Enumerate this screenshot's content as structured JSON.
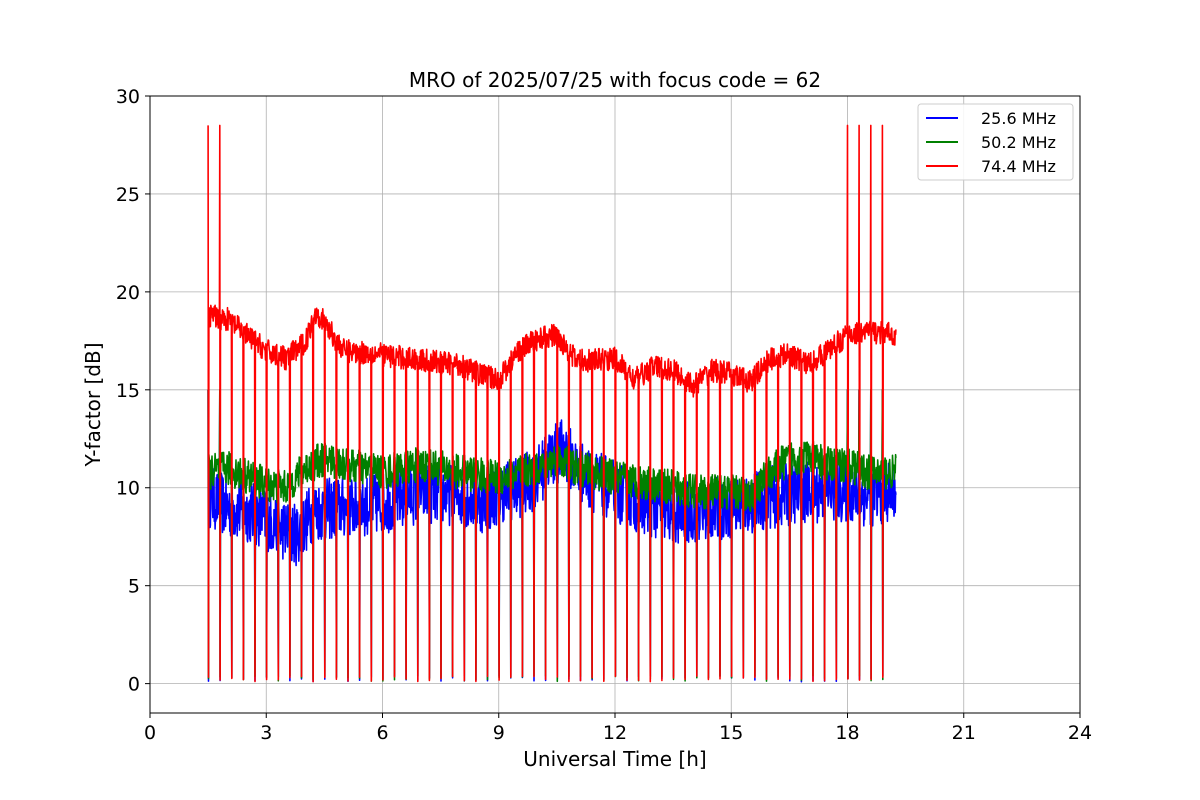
{
  "chart_data": {
    "type": "line",
    "title": "MRO of 2025/07/25 with focus code = 62",
    "xlabel": "Universal Time [h]",
    "ylabel": "Y-factor [dB]",
    "xlim": [
      0,
      24
    ],
    "ylim": [
      -1.5,
      30
    ],
    "xticks": [
      0,
      3,
      6,
      9,
      12,
      15,
      18,
      21,
      24
    ],
    "yticks": [
      0,
      5,
      10,
      15,
      20,
      25,
      30
    ],
    "grid": true,
    "legend_position": "top-right",
    "calibration_spikes": {
      "start_h": 1.5,
      "end_h": 19.05,
      "interval_h": 0.3,
      "low_db": 0.1,
      "peak_db": {
        "25.6 MHz": 15,
        "50.2 MHz": 15,
        "74.4 MHz": 28.5
      }
    },
    "series": [
      {
        "name": "25.6 MHz",
        "color": "#0000ff",
        "band_db": 1.6,
        "x": [
          1.5,
          2.0,
          2.5,
          3.0,
          3.5,
          3.8,
          4.2,
          5.0,
          6.0,
          7.0,
          8.0,
          8.7,
          9.0,
          9.5,
          10.0,
          10.3,
          10.7,
          11.0,
          11.3,
          12.0,
          12.5,
          13.0,
          13.7,
          14.0,
          15.0,
          16.0,
          17.0,
          18.0,
          18.5,
          19.25
        ],
        "y": [
          9.6,
          9.0,
          8.8,
          8.4,
          7.8,
          7.6,
          8.8,
          9.0,
          9.2,
          9.8,
          9.6,
          9.2,
          9.8,
          10.0,
          10.5,
          11.5,
          12.0,
          11.0,
          10.5,
          9.8,
          9.4,
          9.0,
          8.6,
          8.8,
          9.0,
          9.5,
          9.8,
          9.8,
          9.6,
          9.8
        ]
      },
      {
        "name": "50.2 MHz",
        "color": "#008000",
        "band_db": 0.9,
        "x": [
          1.5,
          2.0,
          2.5,
          3.0,
          3.5,
          4.0,
          4.5,
          5.0,
          6.0,
          7.0,
          8.0,
          9.0,
          10.0,
          10.5,
          11.0,
          11.5,
          12.0,
          13.0,
          14.0,
          15.0,
          15.5,
          16.0,
          16.5,
          17.0,
          17.5,
          18.0,
          18.5,
          19.25
        ],
        "y": [
          10.8,
          11.0,
          10.6,
          10.2,
          10.0,
          11.0,
          11.5,
          11.2,
          10.8,
          11.2,
          10.8,
          10.5,
          11.0,
          11.5,
          11.0,
          10.8,
          10.5,
          10.2,
          9.8,
          9.8,
          9.6,
          10.8,
          11.5,
          11.6,
          11.2,
          11.2,
          10.8,
          10.8
        ]
      },
      {
        "name": "74.4 MHz",
        "color": "#ff0000",
        "band_db": 0.6,
        "x": [
          1.5,
          2.0,
          2.5,
          3.0,
          3.5,
          4.0,
          4.3,
          5.0,
          6.0,
          7.0,
          8.0,
          8.5,
          9.0,
          9.5,
          10.0,
          10.5,
          11.0,
          11.5,
          12.0,
          12.5,
          13.0,
          13.5,
          14.0,
          14.5,
          15.0,
          15.5,
          16.0,
          16.5,
          17.0,
          17.5,
          18.0,
          18.5,
          19.25
        ],
        "y": [
          18.8,
          18.6,
          17.8,
          17.0,
          16.6,
          17.4,
          19.0,
          17.0,
          16.8,
          16.5,
          16.3,
          15.8,
          15.5,
          17.0,
          17.6,
          17.8,
          16.5,
          16.5,
          16.6,
          15.5,
          16.2,
          16.0,
          15.2,
          16.0,
          15.8,
          15.4,
          16.6,
          16.8,
          16.3,
          17.0,
          17.8,
          18.0,
          17.8
        ]
      }
    ]
  }
}
